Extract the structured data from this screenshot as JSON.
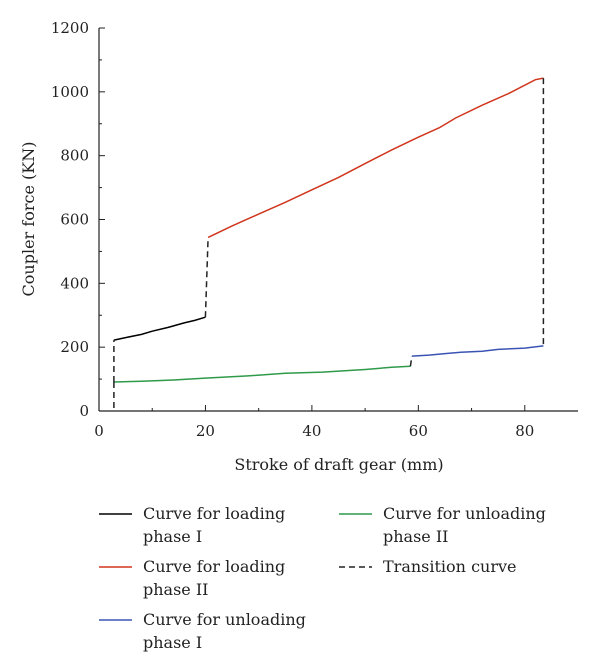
{
  "chart_data": {
    "type": "line",
    "title": "",
    "xlabel": "Stroke of draft gear (mm)",
    "ylabel": "Coupler force (KN)",
    "xlim": [
      0,
      90
    ],
    "ylim": [
      0,
      1200
    ],
    "x_ticks": [
      0,
      20,
      40,
      60,
      80
    ],
    "y_ticks": [
      0,
      200,
      400,
      600,
      800,
      1000,
      1200
    ],
    "x_tick_labels": [
      "0",
      "20",
      "40",
      "60",
      "80"
    ],
    "y_tick_labels": [
      "0",
      "200",
      "400",
      "600",
      "800",
      "1000",
      "1200"
    ],
    "grid": false,
    "legend_position": "bottom",
    "series": [
      {
        "name": "Curve for loading phase I",
        "legend_lines": [
          "Curve for loading",
          "phase I"
        ],
        "color": "#000000",
        "style": "solid",
        "points": [
          [
            2.8,
            222
          ],
          [
            5,
            230
          ],
          [
            8,
            240
          ],
          [
            10,
            250
          ],
          [
            13,
            262
          ],
          [
            16,
            276
          ],
          [
            18,
            284
          ],
          [
            20,
            294
          ]
        ]
      },
      {
        "name": "Curve for loading phase II",
        "legend_lines": [
          "Curve for loading",
          "phase II"
        ],
        "color": "#d0361d",
        "style": "solid",
        "points": [
          [
            20.5,
            544
          ],
          [
            25,
            580
          ],
          [
            30,
            617
          ],
          [
            35,
            654
          ],
          [
            40,
            693
          ],
          [
            45,
            732
          ],
          [
            50,
            775
          ],
          [
            55,
            818
          ],
          [
            60,
            858
          ],
          [
            64,
            888
          ],
          [
            67,
            918
          ],
          [
            72,
            958
          ],
          [
            77,
            995
          ],
          [
            82,
            1038
          ],
          [
            83.5,
            1043
          ]
        ]
      },
      {
        "name": "Curve for unloading phase I",
        "legend_lines": [
          "Curve for unloading",
          "phase I"
        ],
        "color": "#3a54b4",
        "style": "solid",
        "points": [
          [
            58.8,
            172
          ],
          [
            62,
            175
          ],
          [
            65,
            180
          ],
          [
            68,
            184
          ],
          [
            72,
            187
          ],
          [
            75,
            193
          ],
          [
            80,
            197
          ],
          [
            83.5,
            204
          ]
        ]
      },
      {
        "name": "Curve for unloading phase II",
        "legend_lines": [
          "Curve for unloading",
          "phase II"
        ],
        "color": "#2e9a4a",
        "style": "solid",
        "points": [
          [
            2.8,
            91
          ],
          [
            8,
            93
          ],
          [
            14,
            97
          ],
          [
            20,
            103
          ],
          [
            28,
            110
          ],
          [
            35,
            118
          ],
          [
            42,
            122
          ],
          [
            50,
            130
          ],
          [
            55,
            137
          ],
          [
            58.5,
            140
          ]
        ]
      },
      {
        "name": "Transition curve",
        "legend_lines": [
          "Transition curve"
        ],
        "color": "#222222",
        "style": "dashed",
        "segments": [
          [
            [
              20,
              294
            ],
            [
              20.5,
              544
            ]
          ],
          [
            [
              83.5,
              1043
            ],
            [
              83.5,
              204
            ]
          ],
          [
            [
              58.5,
              140
            ],
            [
              58.8,
              172
            ]
          ],
          [
            [
              2.8,
              91
            ],
            [
              2.8,
              222
            ]
          ],
          [
            [
              2.8,
              91
            ],
            [
              2.8,
              0
            ]
          ]
        ]
      }
    ]
  }
}
